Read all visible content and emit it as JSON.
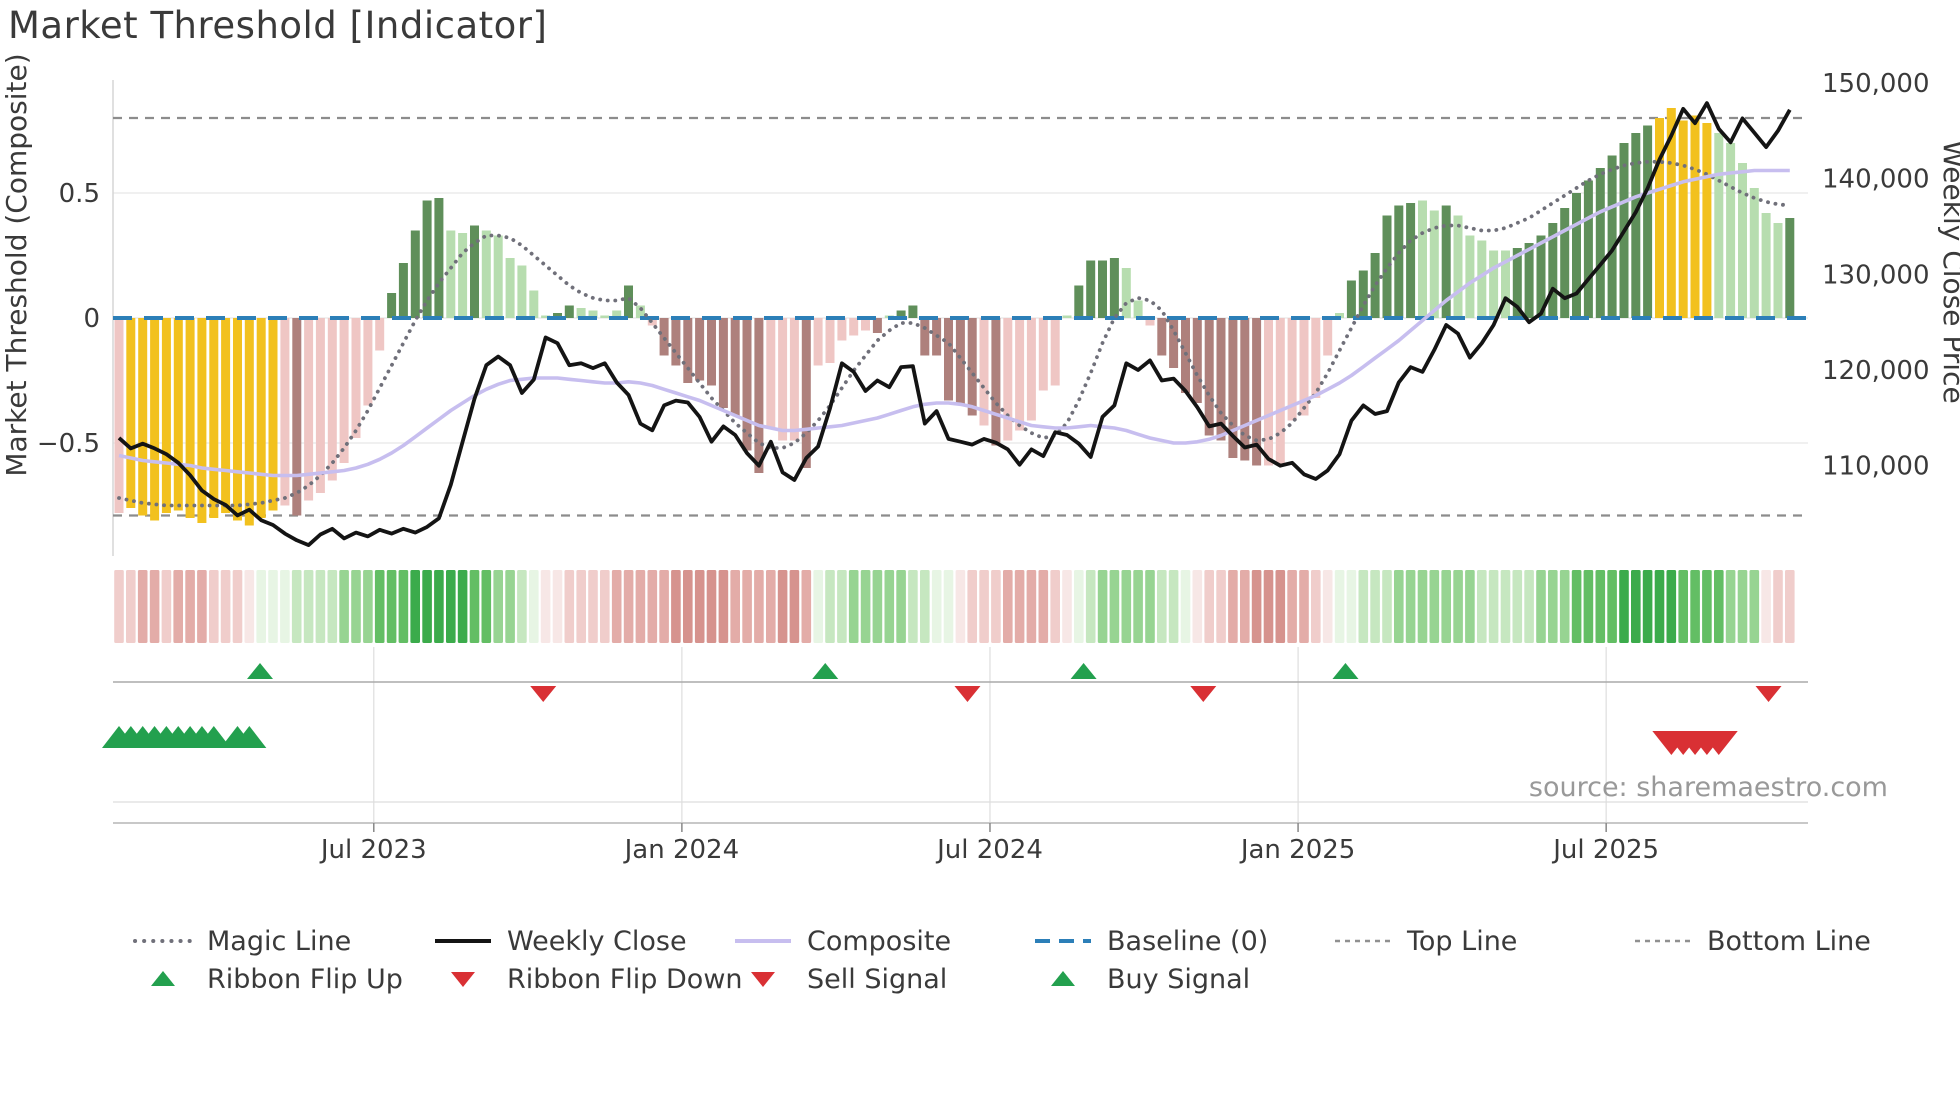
{
  "title": "Market Threshold [Indicator]",
  "source_text": "source: sharemaestro.com",
  "colors": {
    "gold": "#F2C11E",
    "pink": "#EFC6C4",
    "maroon": "#AE807C",
    "green_dark": "#5F8F5A",
    "green_light": "#B7DDAF",
    "close_line": "#141414",
    "composite_line": "#C7BEEF",
    "magic_line": "#70707A",
    "baseline": "#2C7FB8",
    "ref_dash": "#8C8C8C",
    "grid": "#ECECEC",
    "signal_green": "#23A04E",
    "signal_red": "#D93034",
    "text": "#3A3A3A",
    "muted": "#999999",
    "ribbon_palette": {
      "p1": "#F7E7E6",
      "p2": "#F0CDCB",
      "p3": "#E3ACA8",
      "p4": "#D6938E",
      "g1": "#E7F5E4",
      "g2": "#C6E7C0",
      "g3": "#97D492",
      "g4": "#63BE64",
      "g5": "#3BAB4B"
    },
    "bar_palette": {
      "Y": "#F2C11E",
      "P": "#EFC6C4",
      "M": "#AE807C",
      "D": "#5F8F5A",
      "L": "#B7DDAF"
    }
  },
  "legend": {
    "rows": [
      [
        {
          "label": "Magic Line",
          "swatch": "dotted-gray"
        },
        {
          "label": "Weekly Close",
          "swatch": "solid-black"
        },
        {
          "label": "Composite",
          "swatch": "solid-purple"
        },
        {
          "label": "Baseline (0)",
          "swatch": "dashed-blue"
        },
        {
          "label": "Top Line",
          "swatch": "dashed-gray"
        },
        {
          "label": "Bottom Line",
          "swatch": "dashed-gray"
        }
      ],
      [
        {
          "label": "Ribbon Flip Up",
          "swatch": "tri-up"
        },
        {
          "label": "Ribbon Flip Down",
          "swatch": "tri-down"
        },
        {
          "label": "Sell Signal",
          "swatch": "tri-down"
        },
        {
          "label": "Buy Signal",
          "swatch": "tri-up"
        }
      ]
    ]
  },
  "chart_data": {
    "type": "combo",
    "weeks": 142,
    "x_ticks": {
      "labels": [
        "Jul 2023",
        "Jan 2024",
        "Jul 2024",
        "Jan 2025",
        "Jul 2025"
      ],
      "week_positions": [
        21.5,
        47.5,
        73.5,
        99.5,
        125.5
      ]
    },
    "left_axis": {
      "title": "Market Threshold (Composite)",
      "tick_labels": [
        "0.5",
        "0",
        "−0.5"
      ],
      "tick_values": [
        0.5,
        0,
        -0.5
      ],
      "range": [
        -0.95,
        0.95
      ]
    },
    "right_axis": {
      "title": "Weekly Close Price",
      "tick_labels": [
        "150,000",
        "140,000",
        "130,000",
        "120,000",
        "110,000"
      ],
      "tick_values": [
        150000,
        140000,
        130000,
        120000,
        110000
      ],
      "range": [
        100700,
        150300
      ]
    },
    "reference_lines": {
      "baseline": 0,
      "top_line": 0.8,
      "bottom_line": -0.79
    },
    "series": {
      "composite_bars": {
        "values": [
          -0.78,
          -0.76,
          -0.79,
          -0.81,
          -0.78,
          -0.77,
          -0.8,
          -0.82,
          -0.8,
          -0.78,
          -0.81,
          -0.83,
          -0.8,
          -0.77,
          -0.75,
          -0.79,
          -0.73,
          -0.7,
          -0.65,
          -0.58,
          -0.48,
          -0.35,
          -0.13,
          0.1,
          0.22,
          0.35,
          0.47,
          0.48,
          0.35,
          0.34,
          0.37,
          0.35,
          0.33,
          0.24,
          0.21,
          0.11,
          0.01,
          0.02,
          0.05,
          0.04,
          0.03,
          0.01,
          0.03,
          0.13,
          0.05,
          -0.03,
          -0.15,
          -0.19,
          -0.26,
          -0.25,
          -0.27,
          -0.36,
          -0.39,
          -0.53,
          -0.62,
          -0.44,
          -0.49,
          -0.49,
          -0.6,
          -0.19,
          -0.18,
          -0.09,
          -0.07,
          -0.05,
          -0.06,
          0.01,
          0.03,
          0.05,
          -0.15,
          -0.15,
          -0.33,
          -0.35,
          -0.39,
          -0.43,
          -0.51,
          -0.49,
          -0.45,
          -0.41,
          -0.29,
          -0.27,
          0.01,
          0.13,
          0.23,
          0.23,
          0.24,
          0.2,
          0.07,
          -0.03,
          -0.15,
          -0.2,
          -0.3,
          -0.34,
          -0.47,
          -0.49,
          -0.56,
          -0.57,
          -0.59,
          -0.59,
          -0.59,
          -0.41,
          -0.39,
          -0.32,
          -0.15,
          0.02,
          0.15,
          0.19,
          0.26,
          0.41,
          0.45,
          0.46,
          0.47,
          0.43,
          0.45,
          0.41,
          0.33,
          0.31,
          0.27,
          0.27,
          0.28,
          0.3,
          0.33,
          0.38,
          0.44,
          0.5,
          0.55,
          0.6,
          0.65,
          0.7,
          0.74,
          0.77,
          0.8,
          0.84,
          0.79,
          0.81,
          0.78,
          0.74,
          0.7,
          0.62,
          0.52,
          0.42,
          0.38,
          0.4
        ],
        "colors": [
          "P",
          "Y",
          "Y",
          "Y",
          "Y",
          "Y",
          "Y",
          "Y",
          "Y",
          "Y",
          "Y",
          "Y",
          "Y",
          "Y",
          "P",
          "M",
          "P",
          "P",
          "P",
          "P",
          "P",
          "P",
          "P",
          "D",
          "D",
          "D",
          "D",
          "D",
          "L",
          "L",
          "D",
          "L",
          "L",
          "L",
          "L",
          "L",
          "L",
          "D",
          "D",
          "L",
          "L",
          "L",
          "L",
          "D",
          "L",
          "P",
          "M",
          "M",
          "M",
          "M",
          "M",
          "M",
          "M",
          "M",
          "M",
          "P",
          "P",
          "P",
          "M",
          "P",
          "P",
          "P",
          "P",
          "P",
          "M",
          "L",
          "D",
          "D",
          "M",
          "M",
          "M",
          "M",
          "M",
          "P",
          "M",
          "P",
          "P",
          "P",
          "P",
          "P",
          "L",
          "D",
          "D",
          "D",
          "D",
          "L",
          "L",
          "P",
          "M",
          "M",
          "M",
          "M",
          "M",
          "M",
          "M",
          "M",
          "M",
          "P",
          "P",
          "P",
          "P",
          "P",
          "P",
          "L",
          "D",
          "D",
          "D",
          "D",
          "D",
          "D",
          "L",
          "L",
          "D",
          "L",
          "L",
          "L",
          "L",
          "L",
          "D",
          "D",
          "D",
          "D",
          "D",
          "D",
          "D",
          "D",
          "D",
          "D",
          "D",
          "D",
          "Y",
          "Y",
          "Y",
          "Y",
          "Y",
          "L",
          "L",
          "L",
          "L",
          "L",
          "L",
          "D"
        ]
      },
      "ribbon": {
        "colors": [
          "p2",
          "p2",
          "p3",
          "p3",
          "p2",
          "p3",
          "p3",
          "p3",
          "p2",
          "p2",
          "p2",
          "p1",
          "g1",
          "g1",
          "g1",
          "g2",
          "g2",
          "g2",
          "g2",
          "g3",
          "g3",
          "g3",
          "g4",
          "g4",
          "g4",
          "g5",
          "g5",
          "g5",
          "g5",
          "g5",
          "g4",
          "g4",
          "g3",
          "g3",
          "g2",
          "g1",
          "p1",
          "p1",
          "p2",
          "p2",
          "p2",
          "p2",
          "p3",
          "p3",
          "p3",
          "p3",
          "p3",
          "p4",
          "p4",
          "p4",
          "p4",
          "p4",
          "p3",
          "p3",
          "p3",
          "p3",
          "p4",
          "p4",
          "p3",
          "g1",
          "g2",
          "g2",
          "g3",
          "g3",
          "g3",
          "g3",
          "g3",
          "g2",
          "g2",
          "g1",
          "g1",
          "p1",
          "p2",
          "p2",
          "p2",
          "p3",
          "p3",
          "p3",
          "p3",
          "p2",
          "p1",
          "g1",
          "g2",
          "g3",
          "g3",
          "g3",
          "g3",
          "g3",
          "g2",
          "g2",
          "g1",
          "p1",
          "p2",
          "p2",
          "p3",
          "p3",
          "p4",
          "p4",
          "p4",
          "p3",
          "p3",
          "p2",
          "p1",
          "g1",
          "g1",
          "g2",
          "g2",
          "g2",
          "g3",
          "g3",
          "g3",
          "g3",
          "g3",
          "g3",
          "g3",
          "g2",
          "g2",
          "g2",
          "g2",
          "g2",
          "g3",
          "g3",
          "g3",
          "g4",
          "g4",
          "g4",
          "g4",
          "g5",
          "g5",
          "g5",
          "g5",
          "g5",
          "g4",
          "g4",
          "g4",
          "g4",
          "g3",
          "g3",
          "g3",
          "p1",
          "p2",
          "p2"
        ]
      },
      "weekly_close": {
        "values": [
          112900,
          111800,
          112300,
          111800,
          111200,
          110300,
          109000,
          107400,
          106500,
          105900,
          104800,
          105400,
          104300,
          103800,
          102900,
          102200,
          101700,
          102800,
          103400,
          102400,
          103000,
          102600,
          103300,
          102900,
          103400,
          103000,
          103600,
          104500,
          108000,
          112500,
          117000,
          120500,
          121400,
          120500,
          117600,
          119000,
          123400,
          122800,
          120500,
          120700,
          120200,
          120700,
          118700,
          117400,
          114400,
          113700,
          116300,
          116800,
          116600,
          115100,
          112500,
          114100,
          113200,
          111300,
          110000,
          112500,
          109300,
          108500,
          110800,
          112000,
          116000,
          120700,
          119800,
          117800,
          118900,
          118200,
          120300,
          120400,
          114400,
          115700,
          112800,
          112500,
          112200,
          112800,
          112400,
          111700,
          110100,
          111700,
          111000,
          113500,
          113200,
          112300,
          110900,
          115100,
          116300,
          120700,
          120000,
          121000,
          118900,
          119100,
          117800,
          116100,
          114100,
          114400,
          113100,
          111900,
          112200,
          110700,
          110000,
          110300,
          109100,
          108600,
          109500,
          111200,
          114700,
          116300,
          115400,
          115700,
          118700,
          120300,
          119800,
          122100,
          124700,
          123800,
          121300,
          122800,
          124700,
          127500,
          126600,
          125000,
          125900,
          128500,
          127500,
          128000,
          129500,
          131000,
          132500,
          134500,
          136500,
          139000,
          142000,
          144500,
          147300,
          145800,
          147900,
          145200,
          143800,
          146300,
          144800,
          143300,
          145000,
          147200
        ]
      },
      "composite_line": {
        "values": [
          -0.55,
          -0.56,
          -0.57,
          -0.575,
          -0.58,
          -0.585,
          -0.59,
          -0.6,
          -0.605,
          -0.61,
          -0.615,
          -0.62,
          -0.625,
          -0.63,
          -0.63,
          -0.63,
          -0.625,
          -0.62,
          -0.615,
          -0.61,
          -0.6,
          -0.585,
          -0.565,
          -0.54,
          -0.51,
          -0.475,
          -0.44,
          -0.405,
          -0.37,
          -0.34,
          -0.31,
          -0.285,
          -0.265,
          -0.25,
          -0.245,
          -0.24,
          -0.24,
          -0.24,
          -0.245,
          -0.25,
          -0.255,
          -0.26,
          -0.26,
          -0.255,
          -0.26,
          -0.27,
          -0.285,
          -0.3,
          -0.315,
          -0.33,
          -0.35,
          -0.37,
          -0.39,
          -0.41,
          -0.43,
          -0.44,
          -0.45,
          -0.45,
          -0.445,
          -0.44,
          -0.435,
          -0.43,
          -0.42,
          -0.41,
          -0.4,
          -0.385,
          -0.37,
          -0.355,
          -0.345,
          -0.34,
          -0.34,
          -0.345,
          -0.355,
          -0.37,
          -0.385,
          -0.4,
          -0.415,
          -0.43,
          -0.435,
          -0.44,
          -0.44,
          -0.435,
          -0.43,
          -0.435,
          -0.44,
          -0.45,
          -0.465,
          -0.48,
          -0.49,
          -0.5,
          -0.5,
          -0.495,
          -0.485,
          -0.47,
          -0.45,
          -0.43,
          -0.41,
          -0.39,
          -0.37,
          -0.35,
          -0.33,
          -0.31,
          -0.285,
          -0.26,
          -0.23,
          -0.195,
          -0.16,
          -0.125,
          -0.09,
          -0.05,
          -0.01,
          0.03,
          0.07,
          0.105,
          0.14,
          0.17,
          0.2,
          0.225,
          0.25,
          0.275,
          0.3,
          0.325,
          0.35,
          0.375,
          0.4,
          0.425,
          0.445,
          0.465,
          0.485,
          0.5,
          0.515,
          0.53,
          0.545,
          0.555,
          0.565,
          0.575,
          0.58,
          0.585,
          0.59,
          0.59,
          0.59,
          0.59
        ]
      },
      "magic_line": {
        "values": [
          -0.72,
          -0.73,
          -0.74,
          -0.745,
          -0.75,
          -0.75,
          -0.75,
          -0.75,
          -0.75,
          -0.75,
          -0.75,
          -0.745,
          -0.74,
          -0.73,
          -0.72,
          -0.7,
          -0.67,
          -0.63,
          -0.58,
          -0.52,
          -0.45,
          -0.37,
          -0.28,
          -0.19,
          -0.1,
          -0.01,
          0.07,
          0.14,
          0.2,
          0.26,
          0.3,
          0.33,
          0.33,
          0.32,
          0.29,
          0.25,
          0.21,
          0.17,
          0.13,
          0.1,
          0.08,
          0.07,
          0.07,
          0.08,
          0.04,
          -0.02,
          -0.08,
          -0.14,
          -0.2,
          -0.26,
          -0.32,
          -0.37,
          -0.42,
          -0.46,
          -0.5,
          -0.52,
          -0.52,
          -0.5,
          -0.46,
          -0.41,
          -0.35,
          -0.28,
          -0.21,
          -0.15,
          -0.09,
          -0.05,
          -0.02,
          -0.02,
          -0.04,
          -0.07,
          -0.1,
          -0.16,
          -0.22,
          -0.28,
          -0.34,
          -0.39,
          -0.43,
          -0.46,
          -0.48,
          -0.47,
          -0.42,
          -0.33,
          -0.22,
          -0.1,
          0.0,
          0.06,
          0.08,
          0.07,
          0.03,
          -0.05,
          -0.14,
          -0.23,
          -0.31,
          -0.38,
          -0.43,
          -0.47,
          -0.49,
          -0.485,
          -0.46,
          -0.42,
          -0.36,
          -0.3,
          -0.22,
          -0.13,
          -0.04,
          0.05,
          0.13,
          0.2,
          0.26,
          0.31,
          0.34,
          0.36,
          0.37,
          0.37,
          0.36,
          0.35,
          0.35,
          0.36,
          0.38,
          0.4,
          0.43,
          0.46,
          0.49,
          0.52,
          0.55,
          0.575,
          0.595,
          0.61,
          0.62,
          0.625,
          0.625,
          0.62,
          0.61,
          0.595,
          0.575,
          0.55,
          0.525,
          0.5,
          0.48,
          0.465,
          0.455,
          0.45
        ]
      }
    },
    "signals": {
      "ribbon_flip_up_weeks": [
        11.9,
        59.6,
        81.4,
        103.5
      ],
      "ribbon_flip_down_weeks": [
        35.8,
        71.6,
        91.5,
        139.2
      ],
      "buy_signal_weeks": [
        0,
        1,
        2,
        3,
        4,
        5,
        6,
        7,
        8,
        10,
        11
      ],
      "sell_signal_weeks": [
        131,
        132,
        133,
        134,
        135
      ]
    }
  }
}
